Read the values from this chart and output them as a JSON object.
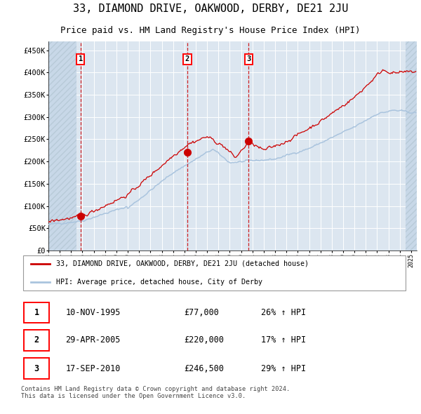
{
  "title": "33, DIAMOND DRIVE, OAKWOOD, DERBY, DE21 2JU",
  "subtitle": "Price paid vs. HM Land Registry's House Price Index (HPI)",
  "title_fontsize": 11,
  "subtitle_fontsize": 9,
  "sale_info": [
    {
      "num": "1",
      "date": "10-NOV-1995",
      "price": "£77,000",
      "hpi": "26% ↑ HPI"
    },
    {
      "num": "2",
      "date": "29-APR-2005",
      "price": "£220,000",
      "hpi": "17% ↑ HPI"
    },
    {
      "num": "3",
      "date": "17-SEP-2010",
      "price": "£246,500",
      "hpi": "29% ↑ HPI"
    }
  ],
  "ylabel_ticks": [
    "£0",
    "£50K",
    "£100K",
    "£150K",
    "£200K",
    "£250K",
    "£300K",
    "£350K",
    "£400K",
    "£450K"
  ],
  "ytick_values": [
    0,
    50000,
    100000,
    150000,
    200000,
    250000,
    300000,
    350000,
    400000,
    450000
  ],
  "ylim": [
    0,
    470000
  ],
  "hpi_line_color": "#aac4de",
  "price_line_color": "#cc0000",
  "marker_color": "#cc0000",
  "vline_color": "#cc0000",
  "plot_bg_color": "#dce6f0",
  "legend_label_red": "33, DIAMOND DRIVE, OAKWOOD, DERBY, DE21 2JU (detached house)",
  "legend_label_blue": "HPI: Average price, detached house, City of Derby",
  "footer_text": "Contains HM Land Registry data © Crown copyright and database right 2024.\nThis data is licensed under the Open Government Licence v3.0.",
  "xlim_start": 1993.0,
  "xlim_end": 2025.5
}
